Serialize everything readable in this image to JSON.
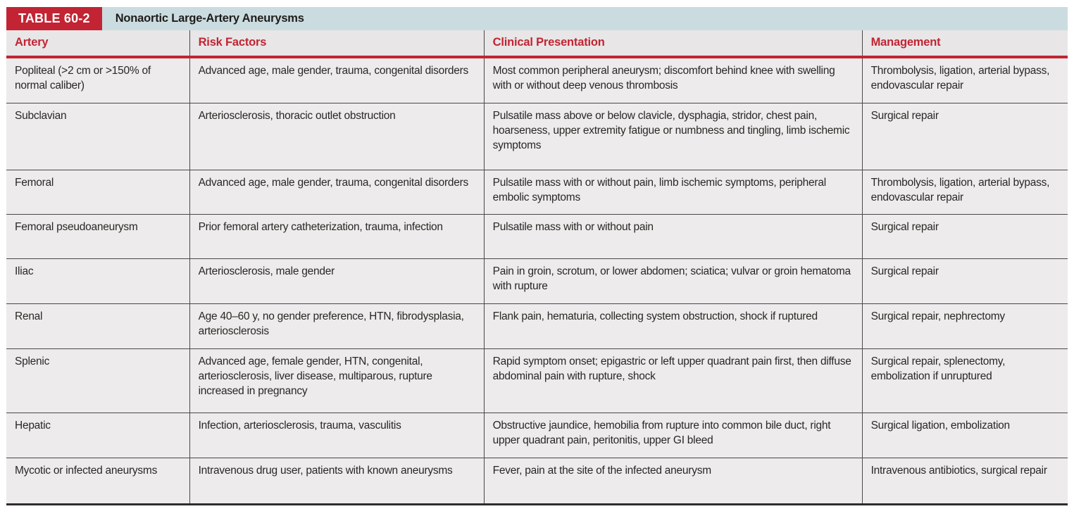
{
  "table": {
    "label": "TABLE 60-2",
    "title": "Nonaortic Large-Artery Aneurysms",
    "colors": {
      "accent_red": "#c22433",
      "title_strip_blue": "#cbdce0",
      "header_bg": "#e8e6e6",
      "row_bg": "#edebeb"
    },
    "columns": [
      "Artery",
      "Risk Factors",
      "Clinical Presentation",
      "Management"
    ],
    "rows": [
      {
        "artery": "Popliteal (>2 cm or >150% of normal caliber)",
        "risk_factors": "Advanced age, male gender, trauma, congenital disorders",
        "clinical_presentation": "Most common peripheral aneurysm; discomfort behind knee with swelling with or without deep venous thrombosis",
        "management": "Thrombolysis, ligation, arterial bypass, endovascular repair"
      },
      {
        "artery": "Subclavian",
        "risk_factors": "Arteriosclerosis, thoracic outlet obstruction",
        "clinical_presentation": "Pulsatile mass above or below clavicle, dysphagia, stridor, chest pain, hoarseness, upper extremity fatigue or numbness and tingling, limb ischemic symptoms",
        "management": "Surgical repair"
      },
      {
        "artery": "Femoral",
        "risk_factors": "Advanced age, male gender, trauma, congenital disorders",
        "clinical_presentation": "Pulsatile mass with or without pain, limb ischemic symptoms, peripheral embolic symptoms",
        "management": "Thrombolysis, ligation, arterial bypass, endovascular repair"
      },
      {
        "artery": "Femoral pseudoaneurysm",
        "risk_factors": "Prior femoral artery catheterization, trauma, infection",
        "clinical_presentation": "Pulsatile mass with or without pain",
        "management": "Surgical repair"
      },
      {
        "artery": "Iliac",
        "risk_factors": "Arteriosclerosis, male gender",
        "clinical_presentation": "Pain in groin, scrotum, or lower abdomen; sciatica; vulvar or groin hematoma with rupture",
        "management": "Surgical repair"
      },
      {
        "artery": "Renal",
        "risk_factors": "Age 40–60 y, no gender preference, HTN, fibrodysplasia, arteriosclerosis",
        "clinical_presentation": "Flank pain, hematuria, collecting system obstruction, shock if ruptured",
        "management": "Surgical repair, nephrectomy"
      },
      {
        "artery": "Splenic",
        "risk_factors": "Advanced age, female gender, HTN, congenital, arteriosclerosis, liver disease, multiparous, rupture increased in pregnancy",
        "clinical_presentation": "Rapid symptom onset; epigastric or left upper quadrant pain first, then diffuse abdominal pain with rupture, shock",
        "management": "Surgical repair, splenectomy, embolization if unruptured"
      },
      {
        "artery": "Hepatic",
        "risk_factors": "Infection, arteriosclerosis, trauma, vasculitis",
        "clinical_presentation": "Obstructive jaundice, hemobilia from rupture into common bile duct, right upper quadrant pain, peritonitis, upper GI bleed",
        "management": "Surgical ligation, embolization"
      },
      {
        "artery": "Mycotic or infected aneurysms",
        "risk_factors": "Intravenous drug user, patients with known aneurysms",
        "clinical_presentation": "Fever, pain at the site of the infected aneurysm",
        "management": "Intravenous antibiotics, surgical repair"
      }
    ]
  }
}
